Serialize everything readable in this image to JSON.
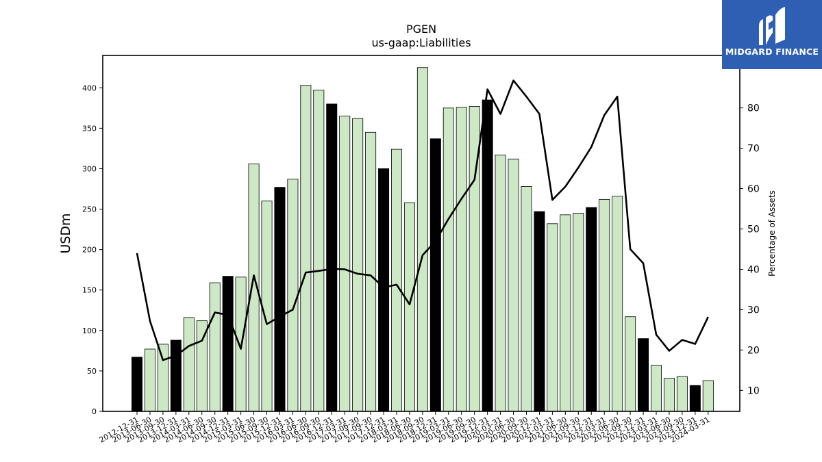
{
  "chart_data": {
    "type": "bar",
    "title": "PGEN",
    "subtitle": "us-gaap:Liabilities",
    "ylabel": "USDm",
    "y2label": "Percentage of Assets",
    "ylim": [
      0,
      440
    ],
    "y2lim": [
      4.8,
      93
    ],
    "yticks": [
      0,
      50,
      100,
      150,
      200,
      250,
      300,
      350,
      400
    ],
    "y2ticks": [
      10,
      20,
      30,
      40,
      50,
      60,
      70,
      80
    ],
    "colors": {
      "annual": "#000000",
      "quarterly": "#cce8c4",
      "edge": "#000000",
      "line": "#000000"
    },
    "categories": [
      "2012-12-31",
      "2013-06-30",
      "2013-09-30",
      "2013-12-31",
      "2014-03-31",
      "2014-06-30",
      "2014-09-30",
      "2014-12-31",
      "2015-03-31",
      "2015-06-30",
      "2015-09-30",
      "2015-12-31",
      "2016-03-31",
      "2016-06-30",
      "2016-09-30",
      "2016-12-31",
      "2017-03-31",
      "2017-06-30",
      "2017-09-30",
      "2017-12-31",
      "2018-03-31",
      "2018-06-30",
      "2018-09-30",
      "2018-12-31",
      "2019-03-31",
      "2019-06-30",
      "2019-09-30",
      "2019-12-31",
      "2020-03-31",
      "2020-06-30",
      "2020-09-30",
      "2020-12-31",
      "2021-03-31",
      "2021-06-30",
      "2021-09-30",
      "2021-12-31",
      "2022-03-31",
      "2022-06-30",
      "2022-09-30",
      "2022-12-31",
      "2023-03-31",
      "2023-06-30",
      "2023-09-30",
      "2023-12-31",
      "2024-03-31"
    ],
    "series": [
      {
        "type": "bar",
        "values": [
          67,
          77,
          83,
          88,
          116,
          112,
          159,
          167,
          166,
          306,
          260,
          277,
          287,
          403,
          397,
          380,
          365,
          362,
          345,
          300,
          324,
          258,
          425,
          337,
          375,
          376,
          377,
          385,
          317,
          312,
          278,
          247,
          232,
          243,
          245,
          252,
          262,
          266,
          117,
          90,
          57,
          41,
          43,
          32,
          38
        ],
        "annual": [
          true,
          false,
          false,
          true,
          false,
          false,
          false,
          true,
          false,
          false,
          false,
          true,
          false,
          false,
          false,
          true,
          false,
          false,
          false,
          true,
          false,
          false,
          false,
          true,
          false,
          false,
          false,
          true,
          false,
          false,
          false,
          true,
          false,
          false,
          false,
          true,
          false,
          false,
          false,
          true,
          false,
          false,
          false,
          true,
          false
        ]
      },
      {
        "type": "line",
        "axis": "right",
        "values": [
          44,
          27.2,
          17.5,
          18.6,
          21,
          22.3,
          29.3,
          28.7,
          20.3,
          38.5,
          26.4,
          28.3,
          30,
          39.2,
          39.6,
          40.1,
          40,
          38.9,
          38.5,
          35.5,
          36.2,
          31.3,
          43.5,
          47,
          52.5,
          57.5,
          62.2,
          84.6,
          78.5,
          86.8,
          82.8,
          78.5,
          57.2,
          60.5,
          65.2,
          70.3,
          78.2,
          82.8,
          45,
          41.5,
          23.8,
          19.8,
          22.5,
          21.5,
          28.2
        ]
      }
    ]
  },
  "logo": {
    "text": "MIDGARD FINANCE",
    "icon": "midgard-m-logo-icon",
    "color": "#2f5fb3"
  }
}
